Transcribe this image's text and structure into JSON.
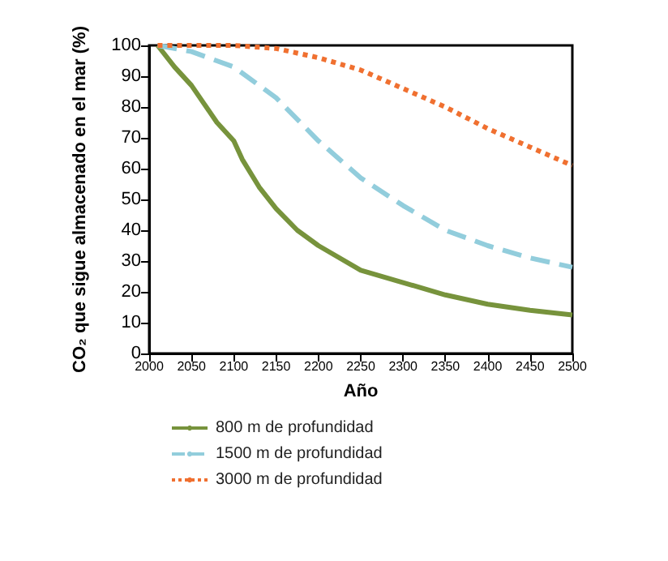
{
  "chart_data": {
    "type": "line",
    "xlabel": "Año",
    "ylabel": "CO₂ que sigue almacenado en el mar (%)",
    "xlim": [
      2000,
      2500
    ],
    "xticks": [
      2000,
      2050,
      2100,
      2150,
      2200,
      2250,
      2300,
      2350,
      2400,
      2450,
      2500
    ],
    "ylim": [
      0,
      100
    ],
    "yticks": [
      0,
      10,
      20,
      30,
      40,
      50,
      60,
      70,
      80,
      90,
      100
    ],
    "grid": false,
    "legend": "bottom",
    "marker": "none",
    "series": [
      {
        "name": "800 m de profundidad",
        "color": "#77933c",
        "line_style": "solid",
        "x": [
          2010,
          2030,
          2050,
          2080,
          2100,
          2110,
          2130,
          2150,
          2175,
          2200,
          2250,
          2300,
          2350,
          2400,
          2450,
          2500
        ],
        "values": [
          100,
          93,
          87,
          75,
          69,
          63,
          54,
          47,
          40,
          35,
          27,
          23,
          19,
          16,
          14,
          12.5
        ]
      },
      {
        "name": "1500 m de profundidad",
        "color": "#92cddc",
        "line_style": "dashed",
        "x": [
          2010,
          2050,
          2100,
          2150,
          2200,
          2250,
          2300,
          2350,
          2400,
          2450,
          2500
        ],
        "values": [
          100,
          98,
          93,
          83,
          69,
          57,
          48,
          40,
          35,
          31,
          28
        ]
      },
      {
        "name": "3000 m de profundidad",
        "color": "#f07030",
        "line_style": "dotted",
        "x": [
          2010,
          2050,
          2100,
          2150,
          2200,
          2250,
          2300,
          2350,
          2400,
          2450,
          2500
        ],
        "values": [
          100,
          100,
          100,
          99,
          96,
          92,
          86,
          80,
          73,
          67,
          61
        ]
      }
    ]
  }
}
